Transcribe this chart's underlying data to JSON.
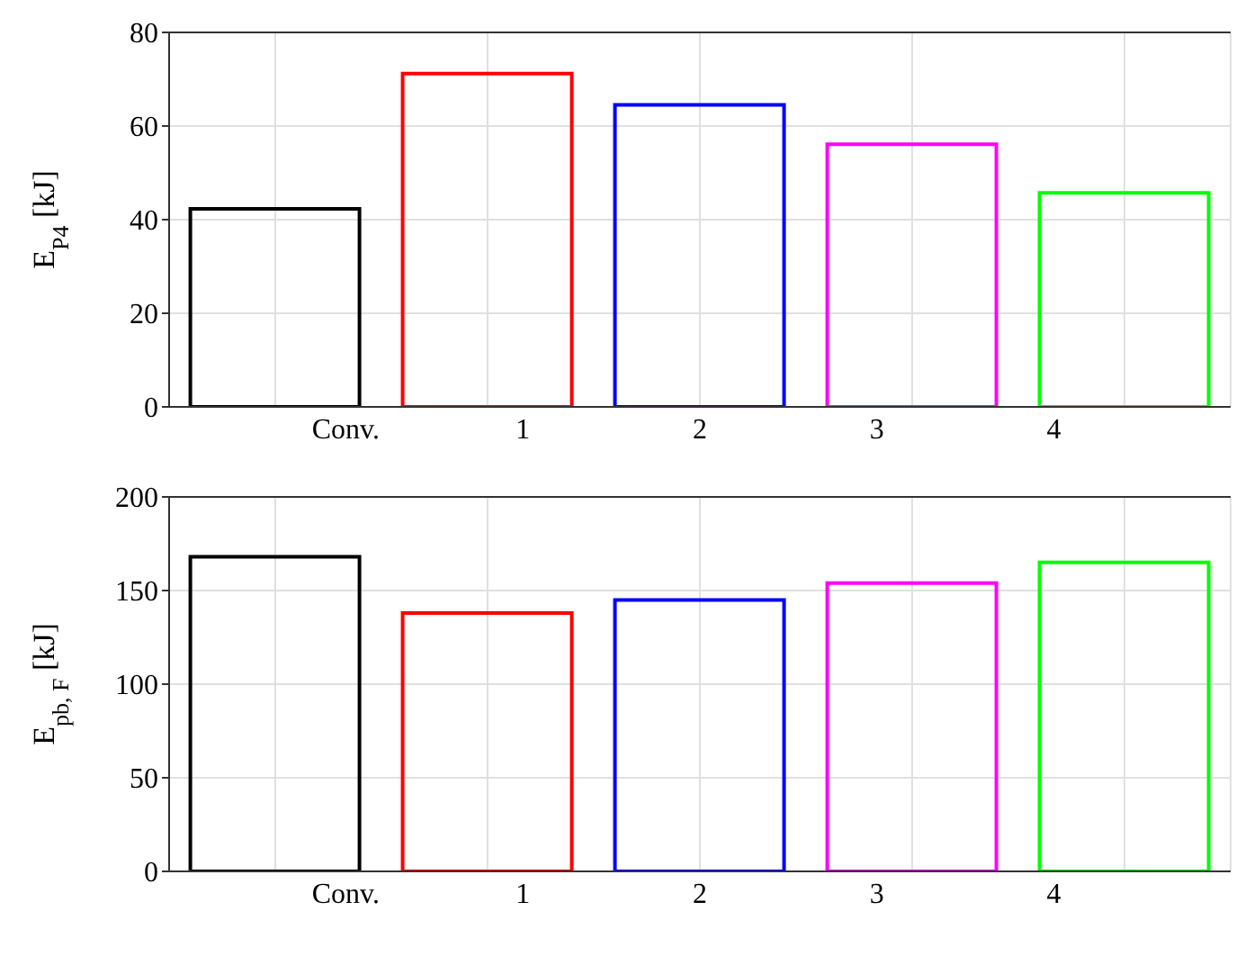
{
  "chart_data": [
    {
      "type": "bar",
      "ylabel": "E$_{P4}$ [kJ]",
      "categories": [
        "Conv.",
        "1",
        "2",
        "3",
        "4"
      ],
      "values": [
        42.3,
        71.2,
        64.5,
        56.1,
        45.7
      ],
      "colors": [
        "#000000",
        "#ff0000",
        "#0000ff",
        "#ff00ff",
        "#00ff00"
      ],
      "ylim": [
        0,
        80
      ],
      "yticks": [
        0,
        20,
        40,
        60,
        80
      ],
      "grid": true
    },
    {
      "type": "bar",
      "ylabel": "E$_{pb, F}$ [kJ]",
      "categories": [
        "Conv.",
        "1",
        "2",
        "3",
        "4"
      ],
      "values": [
        168,
        138,
        145,
        154,
        165
      ],
      "colors": [
        "#000000",
        "#ff0000",
        "#0000ff",
        "#ff00ff",
        "#00ff00"
      ],
      "ylim": [
        0,
        200
      ],
      "yticks": [
        0,
        50,
        100,
        150,
        200
      ],
      "grid": true
    }
  ]
}
